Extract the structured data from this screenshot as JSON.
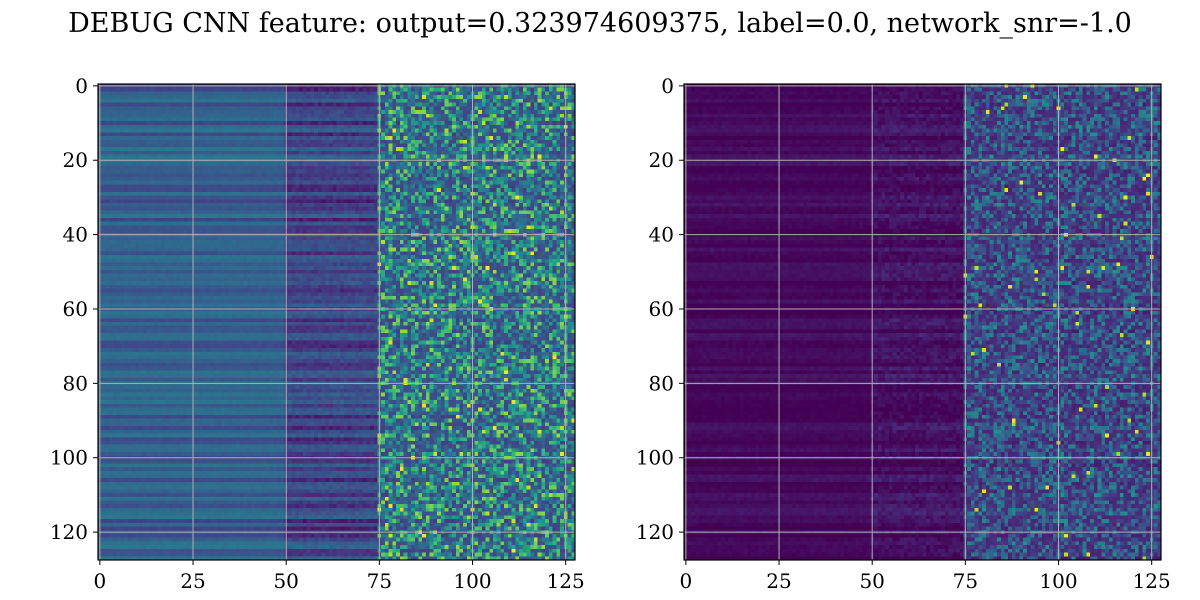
{
  "figure": {
    "title": "DEBUG CNN feature: output=0.323974609375, label=0.0, network_snr=-1.0"
  },
  "colormap": "viridis",
  "colors": {
    "grid": "#b0b0b0",
    "axes_edge": "#000000",
    "background": "#ffffff"
  },
  "chart_data": [
    {
      "type": "heatmap",
      "title": "",
      "xlabel": "",
      "ylabel": "",
      "rows": 128,
      "cols": 128,
      "xlim": [
        -0.5,
        127.5
      ],
      "ylim": [
        127.5,
        -0.5
      ],
      "y_inverted": true,
      "grid": true,
      "colormap": "viridis",
      "xticks": [
        0,
        25,
        50,
        75,
        100,
        125
      ],
      "yticks": [
        0,
        20,
        40,
        60,
        80,
        100,
        120
      ],
      "texture": {
        "left_band": {
          "cols": [
            0,
            50
          ],
          "mean": 0.3,
          "row_variation": 0.1
        },
        "middle_band": {
          "cols": [
            50,
            75
          ],
          "mean": 0.2,
          "row_variation": 0.12
        },
        "noisy_band": {
          "cols": [
            75,
            127
          ],
          "mean": 0.2,
          "noise": 0.4
        }
      }
    },
    {
      "type": "heatmap",
      "title": "",
      "xlabel": "",
      "ylabel": "",
      "rows": 128,
      "cols": 128,
      "xlim": [
        -0.5,
        127.5
      ],
      "ylim": [
        127.5,
        -0.5
      ],
      "y_inverted": true,
      "grid": true,
      "colormap": "viridis",
      "xticks": [
        0,
        25,
        50,
        75,
        100,
        125
      ],
      "yticks": [
        0,
        20,
        40,
        60,
        80,
        100,
        120
      ],
      "texture": {
        "left_band": {
          "cols": [
            0,
            50
          ],
          "mean": 0.02,
          "row_variation": 0.04
        },
        "middle_band": {
          "cols": [
            50,
            75
          ],
          "mean": 0.04,
          "row_variation": 0.05
        },
        "noisy_band": {
          "cols": [
            75,
            127
          ],
          "mean": 0.1,
          "noise": 0.25
        }
      }
    }
  ]
}
